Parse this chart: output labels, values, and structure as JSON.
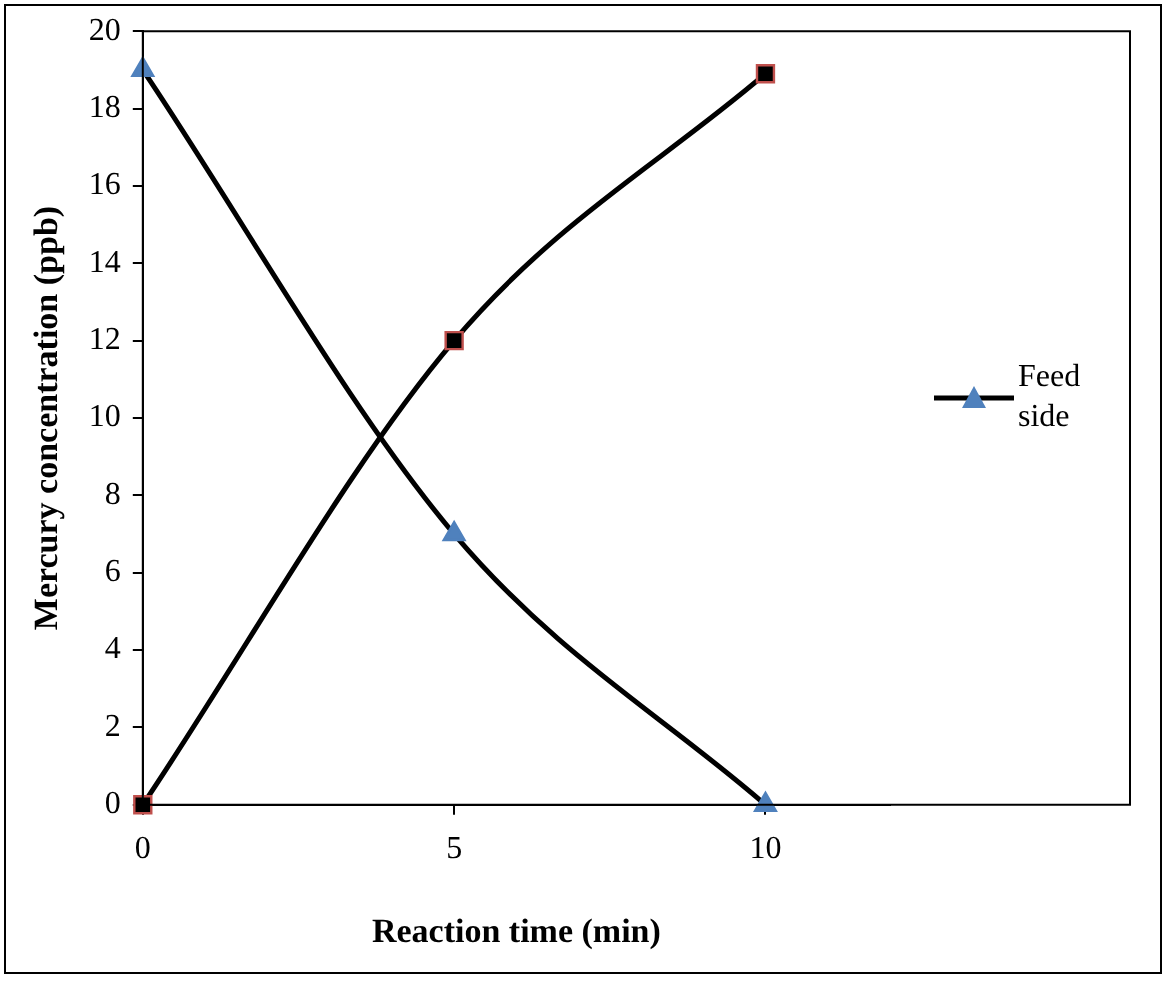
{
  "chart_data": {
    "type": "line",
    "xlabel": "Reaction time (min)",
    "ylabel": "Mercury concentration (ppb)",
    "x": [
      0,
      5,
      10
    ],
    "series": [
      {
        "name": "Feed side",
        "color": "#000000",
        "colors": [
          "#4f81bd",
          "#4f81bd",
          "#4f81bd"
        ],
        "marker": "triangle",
        "values": [
          19,
          7,
          0
        ]
      },
      {
        "color": "#000000",
        "colors": [
          "#000000",
          "#000000",
          "#000000"
        ],
        "marker": "square",
        "values": [
          0,
          12,
          18.9
        ]
      }
    ],
    "xlim": [
      0,
      12
    ],
    "xticks": [
      0,
      5,
      10
    ],
    "ylim": [
      0,
      20
    ],
    "yticks": [
      0,
      2,
      4,
      6,
      8,
      10,
      12,
      14,
      16,
      18,
      20
    ],
    "grid": false,
    "legend": "right",
    "line_style": "solid"
  }
}
